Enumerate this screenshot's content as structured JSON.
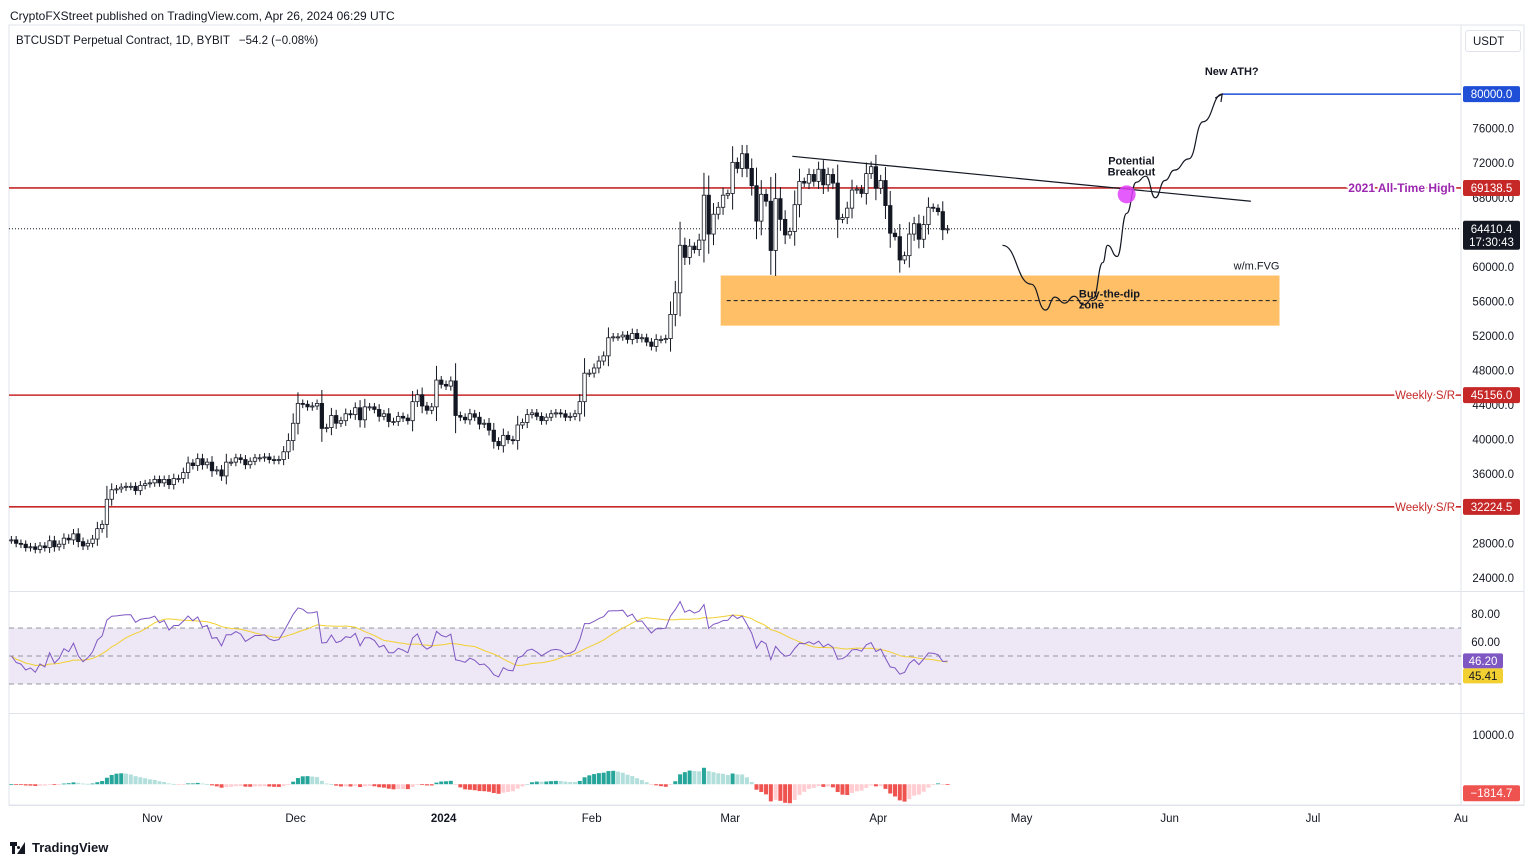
{
  "header": {
    "published_by": "CryptoFXStreet published on TradingView.com, Apr 26, 2024 06:29 UTC"
  },
  "symbol": {
    "name": "BTCUSDT Perpetual Contract, 1D, BYBIT",
    "change": "−54.2 (−0.08%)"
  },
  "currency_button": "USDT",
  "footer": {
    "brand": "TradingView"
  },
  "colors": {
    "up": "#ffffff",
    "down": "#131722",
    "hline": "#c62828",
    "target": "#1e4fd6",
    "fvg": "#ffbf66",
    "rsi": "#7e57c2",
    "rsi_ma": "#f2d031",
    "rsi_band": "#ede7f6",
    "hist_up": "#26a69a",
    "hist_down": "#ef5350",
    "breakout_dot": "#e040fb"
  },
  "chart_data": {
    "type": "candlestick",
    "y_axis": {
      "ticks": [
        80000,
        76000,
        72000,
        68000,
        64000,
        60000,
        56000,
        52000,
        48000,
        44000,
        40000,
        36000,
        32000,
        28000,
        24000
      ],
      "tick_labels": [
        "80000.0",
        "76000.0",
        "72000.0",
        "68000.0",
        "64000.0",
        "60000.0",
        "56000.0",
        "52000.0",
        "48000.0",
        "44000.0",
        "40000.0",
        "36000.0",
        "32000.0",
        "28000.0",
        "24000.0"
      ],
      "ylim": [
        22600,
        88000
      ]
    },
    "x_axis": {
      "labels": [
        "Nov",
        "Dec",
        "2024",
        "Feb",
        "Mar",
        "Apr",
        "May",
        "Jun",
        "Jul",
        "Au"
      ],
      "label_dates": [
        "2023-11-01",
        "2023-12-01",
        "2024-01-01",
        "2024-02-01",
        "2024-03-01",
        "2024-04-01",
        "2024-05-01",
        "2024-06-01",
        "2024-07-01",
        "2024-08-01"
      ],
      "bold": [
        "2024"
      ],
      "range": [
        "2023-10-02",
        "2024-08-01"
      ]
    },
    "price_labels": [
      {
        "text": "80000.0",
        "value": 80000,
        "color": "#1e4fd6"
      },
      {
        "text": "69138.5",
        "value": 69138.5,
        "color": "#c62828"
      },
      {
        "text": "45156.0",
        "value": 45156,
        "color": "#c62828"
      },
      {
        "text": "32224.5",
        "value": 32224.5,
        "color": "#c62828"
      }
    ],
    "last_price": {
      "value": 64410.4,
      "text": "64410.4",
      "countdown": "17:30:43"
    },
    "horizontal_levels": [
      {
        "value": 69138.5,
        "label": "2021 All-Time High"
      },
      {
        "value": 45156.0,
        "label": "Weekly S/R"
      },
      {
        "value": 32224.5,
        "label": "Weekly S/R"
      }
    ],
    "target_line": {
      "value": 80000,
      "from": "2024-06-12",
      "to": "2024-08-01"
    },
    "fvg_zone": {
      "from": "2024-02-28",
      "to": "2024-06-24",
      "top": 59000,
      "bottom": 53200,
      "mid": 56100,
      "label_top": "w/m.FVG",
      "label": "Buy-the-dip zone"
    },
    "annotations": [
      {
        "text": "New ATH?",
        "date": "2024-06-14",
        "value": 82200
      },
      {
        "text": "Potential Breakout",
        "date": "2024-05-24",
        "value": 71300
      }
    ],
    "trendline": [
      [
        "2024-03-14",
        72800
      ],
      [
        "2024-06-18",
        67600
      ]
    ],
    "breakout_point": [
      "2024-05-23",
      68400
    ],
    "projection_path": [
      [
        "2024-04-27",
        62500
      ],
      [
        "2024-05-03",
        58000
      ],
      [
        "2024-05-06",
        55000
      ],
      [
        "2024-05-08",
        56500
      ],
      [
        "2024-05-10",
        55800
      ],
      [
        "2024-05-12",
        56600
      ],
      [
        "2024-05-14",
        55600
      ],
      [
        "2024-05-16",
        56400
      ],
      [
        "2024-05-18",
        60500
      ],
      [
        "2024-05-19",
        62500
      ],
      [
        "2024-05-21",
        61200
      ],
      [
        "2024-05-23",
        66200
      ],
      [
        "2024-05-25",
        69800
      ],
      [
        "2024-05-27",
        70500
      ],
      [
        "2024-05-29",
        68000
      ],
      [
        "2024-05-31",
        70000
      ],
      [
        "2024-06-02",
        71200
      ],
      [
        "2024-06-05",
        72500
      ],
      [
        "2024-06-08",
        76800
      ],
      [
        "2024-06-12",
        80000
      ]
    ],
    "closes": [
      28400,
      28000,
      27900,
      27500,
      27600,
      27300,
      27700,
      27500,
      28300,
      27600,
      27900,
      28600,
      28400,
      29100,
      28200,
      27700,
      28000,
      28500,
      29700,
      30200,
      33100,
      34200,
      34300,
      34500,
      34600,
      34600,
      34100,
      34700,
      34900,
      35000,
      35400,
      35000,
      35400,
      34800,
      35500,
      35500,
      36200,
      37300,
      37000,
      37800,
      37100,
      37400,
      36400,
      36500,
      35800,
      37400,
      37400,
      37900,
      37700,
      37100,
      37500,
      37900,
      37900,
      38000,
      37700,
      37600,
      37700,
      38600,
      39900,
      41900,
      44200,
      44100,
      43800,
      43900,
      44200,
      41300,
      41400,
      42800,
      41900,
      42200,
      43000,
      42900,
      43700,
      42300,
      43800,
      43800,
      43500,
      42700,
      43000,
      42100,
      42100,
      42700,
      42500,
      42200,
      44400,
      45200,
      43900,
      43400,
      43800,
      46900,
      46400,
      46200,
      46800,
      42800,
      42600,
      42300,
      43000,
      42600,
      41800,
      41900,
      41100,
      39800,
      39300,
      40500,
      40000,
      39900,
      41700,
      42000,
      42900,
      43100,
      42700,
      42200,
      42600,
      43000,
      43100,
      43000,
      42600,
      42700,
      43000,
      44400,
      47700,
      47700,
      48300,
      49100,
      49700,
      51800,
      51900,
      51900,
      52100,
      51600,
      52300,
      51700,
      51800,
      51300,
      50800,
      51600,
      51600,
      51700,
      54500,
      57000,
      62500,
      61100,
      62400,
      62000,
      63100,
      68300,
      63800,
      66100,
      66900,
      68300,
      68500,
      72100,
      71400,
      73100,
      71400,
      69400,
      65300,
      68400,
      67600,
      61900,
      67900,
      65500,
      63700,
      64100,
      67200,
      69900,
      69700,
      70700,
      69900,
      71300,
      69500,
      70700,
      69700,
      65500,
      65700,
      66800,
      68900,
      69000,
      68500,
      70800,
      71600,
      69100,
      70000,
      67100,
      63900,
      63500,
      60800,
      61300,
      63800,
      65000,
      63200,
      64900,
      66900,
      66800,
      66400,
      64300,
      64400
    ],
    "rsi": {
      "levels": [
        80,
        60
      ],
      "level_labels": [
        "80.00",
        "60.00"
      ],
      "band": [
        70,
        30
      ],
      "midline": 50,
      "ylim": [
        10,
        95
      ],
      "current": "46.20",
      "ma_current": "45.41"
    },
    "macd": {
      "ticks": [
        10000
      ],
      "tick_labels": [
        "10000.0"
      ],
      "ylim": [
        -4200,
        14000
      ],
      "current": "−1814.7",
      "current_value": -1814.7
    }
  }
}
